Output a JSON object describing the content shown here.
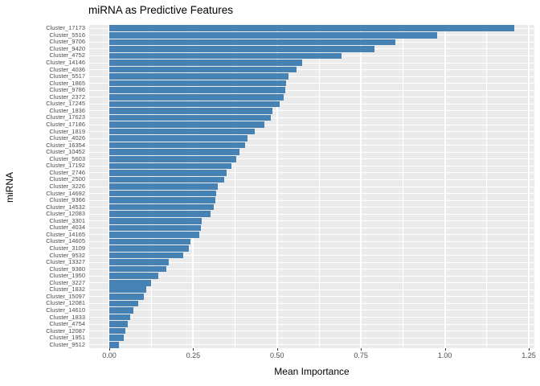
{
  "chart_data": {
    "type": "bar",
    "orientation": "horizontal",
    "title": "miRNA as Predictive Features",
    "xlabel": "Mean Importance",
    "ylabel": "miRNA",
    "xlim": [
      0,
      1.25
    ],
    "x_ticks": [
      0.0,
      0.25,
      0.5,
      0.75,
      1.0,
      1.25
    ],
    "x_tick_labels": [
      "0.00",
      "0.25",
      "0.50",
      "0.75",
      "1.00",
      "1.25"
    ],
    "x_minor_ticks": [
      0.125,
      0.375,
      0.625,
      0.875,
      1.125
    ],
    "grid": "on",
    "legend_position": "none",
    "bar_color": "#4682b4",
    "panel_background": "#ebebeb",
    "grid_color": "#ffffff",
    "axis_text_color": "#4d4d4d",
    "categories": [
      "Cluster_17173",
      "Cluster_5516",
      "Cluster_9706",
      "Cluster_9420",
      "Cluster_4752",
      "Cluster_14146",
      "Cluster_4036",
      "Cluster_5517",
      "Cluster_1865",
      "Cluster_9786",
      "Cluster_2372",
      "Cluster_17245",
      "Cluster_1836",
      "Cluster_17623",
      "Cluster_17186",
      "Cluster_1819",
      "Cluster_4026",
      "Cluster_16354",
      "Cluster_10452",
      "Cluster_5603",
      "Cluster_17192",
      "Cluster_2746",
      "Cluster_2500",
      "Cluster_3226",
      "Cluster_14692",
      "Cluster_9366",
      "Cluster_14532",
      "Cluster_12083",
      "Cluster_3301",
      "Cluster_4034",
      "Cluster_14165",
      "Cluster_14605",
      "Cluster_3109",
      "Cluster_9532",
      "Cluster_13327",
      "Cluster_9380",
      "Cluster_1950",
      "Cluster_3227",
      "Cluster_1832",
      "Cluster_15097",
      "Cluster_12081",
      "Cluster_14610",
      "Cluster_1833",
      "Cluster_4754",
      "Cluster_12087",
      "Cluster_1951",
      "Cluster_9512"
    ],
    "values": [
      1.207,
      0.977,
      0.853,
      0.79,
      0.692,
      0.575,
      0.559,
      0.535,
      0.528,
      0.524,
      0.519,
      0.507,
      0.487,
      0.482,
      0.463,
      0.433,
      0.413,
      0.405,
      0.389,
      0.379,
      0.365,
      0.349,
      0.342,
      0.324,
      0.319,
      0.316,
      0.311,
      0.302,
      0.276,
      0.272,
      0.269,
      0.241,
      0.236,
      0.221,
      0.178,
      0.169,
      0.145,
      0.124,
      0.11,
      0.104,
      0.086,
      0.073,
      0.062,
      0.055,
      0.048,
      0.042,
      0.029
    ]
  }
}
